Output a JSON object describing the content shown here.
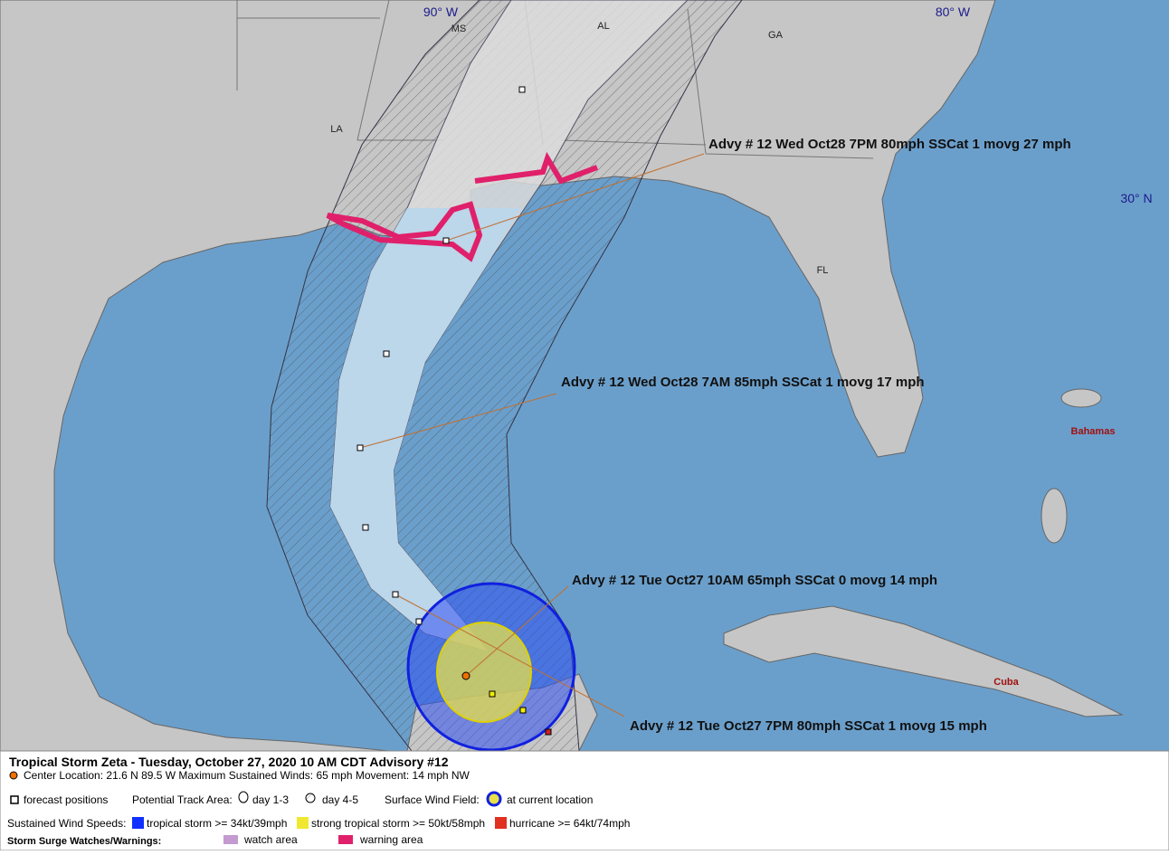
{
  "map": {
    "grid_labels": [
      "90° W",
      "80° W",
      "30° N"
    ],
    "places": [
      "MS",
      "AL",
      "GA",
      "LA",
      "FL",
      "Bahamas",
      "Cuba"
    ],
    "callouts": [
      "Advy # 12 Wed Oct28 7PM  80mph SSCat 1 movg 27 mph",
      "Advy # 12 Wed Oct28 7AM  85mph SSCat 1 movg 17 mph",
      "Advy # 12 Tue Oct27 10AM  65mph SSCat 0 movg 14 mph",
      "Advy # 12 Tue Oct27 7PM  80mph SSCat 1 movg 15 mph"
    ]
  },
  "legend": {
    "title": "Tropical Storm Zeta  -  Tuesday, October 27, 2020  10 AM CDT   Advisory #12",
    "info": "Center Location: 21.6 N  89.5 W   Maximum Sustained Winds: 65 mph  Movement: 14 mph NW",
    "forecast_positions": "forecast positions",
    "track_area": "Potential Track Area:",
    "day13": "day 1-3",
    "day45": "day 4-5",
    "wind_field": "Surface Wind Field:",
    "current": "at current location",
    "speeds": "Sustained Wind Speeds:",
    "ts": "tropical storm >= 34kt/39mph",
    "sts": "strong tropical storm >= 50kt/58mph",
    "hu": "hurricane >= 64kt/74mph",
    "surge": "Storm Surge Watches/Warnings:",
    "watch": "watch area",
    "warning": "warning area"
  }
}
